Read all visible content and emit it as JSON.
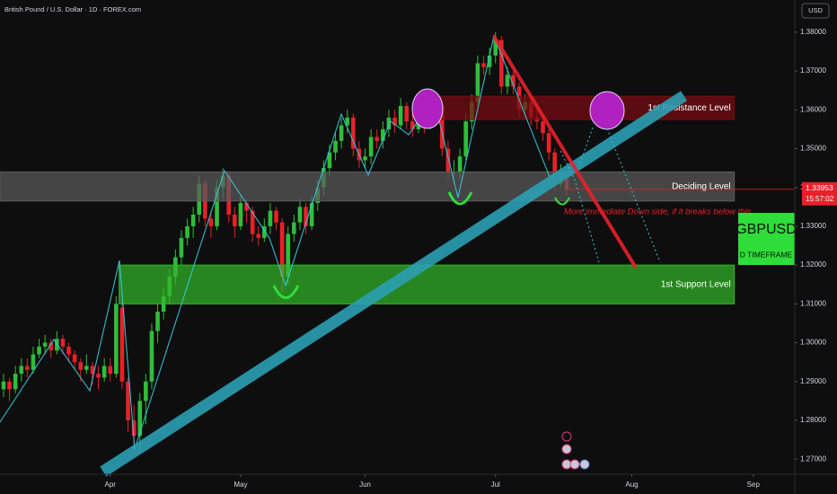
{
  "chart_data": {
    "type": "candlestick",
    "title": "British Pound / U.S. Dollar · 1D · FOREX.com",
    "currency": "USD",
    "up_color": "#2fbd3a",
    "down_color": "#e8202a",
    "grid": false,
    "xlim": [
      -0.6,
      133.5
    ],
    "ylim": [
      1.2668,
      1.3883
    ],
    "xticks": [
      {
        "value": 18,
        "label": "Apr"
      },
      {
        "value": 40,
        "label": "May"
      },
      {
        "value": 61,
        "label": "Jun"
      },
      {
        "value": 83,
        "label": "Jul"
      },
      {
        "value": 106,
        "label": "Aug"
      },
      {
        "value": 126.5,
        "label": "Sep"
      }
    ],
    "yticks": [
      {
        "value": 1.27,
        "label": "1.27000"
      },
      {
        "value": 1.28,
        "label": "1.28000"
      },
      {
        "value": 1.29,
        "label": "1.29000"
      },
      {
        "value": 1.3,
        "label": "1.30000"
      },
      {
        "value": 1.31,
        "label": "1.31000"
      },
      {
        "value": 1.32,
        "label": "1.32000"
      },
      {
        "value": 1.33,
        "label": "1.33000"
      },
      {
        "value": 1.34,
        "label": "1.34000"
      },
      {
        "value": 1.35,
        "label": "1.35000"
      },
      {
        "value": 1.36,
        "label": "1.36000"
      },
      {
        "value": 1.37,
        "label": "1.37000"
      },
      {
        "value": 1.38,
        "label": "1.38000"
      }
    ],
    "candles": [
      [
        1.288,
        1.292,
        1.286,
        1.29
      ],
      [
        1.29,
        1.291,
        1.285,
        1.288
      ],
      [
        1.288,
        1.294,
        1.287,
        1.292
      ],
      [
        1.292,
        1.296,
        1.29,
        1.294
      ],
      [
        1.294,
        1.296,
        1.291,
        1.293
      ],
      [
        1.293,
        1.299,
        1.292,
        1.297
      ],
      [
        1.297,
        1.301,
        1.296,
        1.299
      ],
      [
        1.299,
        1.302,
        1.297,
        1.3
      ],
      [
        1.3,
        1.301,
        1.296,
        1.298
      ],
      [
        1.298,
        1.303,
        1.297,
        1.301
      ],
      [
        1.301,
        1.302,
        1.297,
        1.299
      ],
      [
        1.299,
        1.3,
        1.295,
        1.297
      ],
      [
        1.297,
        1.298,
        1.293,
        1.295
      ],
      [
        1.295,
        1.296,
        1.29,
        1.293
      ],
      [
        1.293,
        1.297,
        1.292,
        1.294
      ],
      [
        1.294,
        1.295,
        1.289,
        1.292
      ],
      [
        1.292,
        1.294,
        1.288,
        1.291
      ],
      [
        1.291,
        1.296,
        1.29,
        1.294
      ],
      [
        1.294,
        1.296,
        1.29,
        1.292
      ],
      [
        1.292,
        1.312,
        1.291,
        1.31
      ],
      [
        1.309,
        1.311,
        1.288,
        1.29
      ],
      [
        1.29,
        1.291,
        1.277,
        1.28
      ],
      [
        1.28,
        1.284,
        1.271,
        1.276
      ],
      [
        1.276,
        1.287,
        1.272,
        1.285
      ],
      [
        1.285,
        1.292,
        1.279,
        1.29
      ],
      [
        1.29,
        1.305,
        1.288,
        1.303
      ],
      [
        1.303,
        1.31,
        1.3,
        1.308
      ],
      [
        1.308,
        1.314,
        1.306,
        1.312
      ],
      [
        1.312,
        1.319,
        1.31,
        1.317
      ],
      [
        1.317,
        1.324,
        1.315,
        1.322
      ],
      [
        1.322,
        1.329,
        1.32,
        1.327
      ],
      [
        1.327,
        1.332,
        1.325,
        1.33
      ],
      [
        1.33,
        1.335,
        1.327,
        1.333
      ],
      [
        1.333,
        1.343,
        1.331,
        1.341
      ],
      [
        1.341,
        1.342,
        1.33,
        1.332
      ],
      [
        1.332,
        1.334,
        1.327,
        1.33
      ],
      [
        1.33,
        1.342,
        1.329,
        1.34
      ],
      [
        1.34,
        1.345,
        1.337,
        1.343
      ],
      [
        1.343,
        1.344,
        1.331,
        1.333
      ],
      [
        1.333,
        1.335,
        1.327,
        1.33
      ],
      [
        1.33,
        1.338,
        1.329,
        1.336
      ],
      [
        1.336,
        1.337,
        1.331,
        1.334
      ],
      [
        1.334,
        1.335,
        1.326,
        1.328
      ],
      [
        1.328,
        1.33,
        1.325,
        1.327
      ],
      [
        1.327,
        1.332,
        1.326,
        1.33
      ],
      [
        1.33,
        1.336,
        1.328,
        1.334
      ],
      [
        1.334,
        1.335,
        1.329,
        1.331
      ],
      [
        1.331,
        1.332,
        1.313,
        1.317
      ],
      [
        1.317,
        1.33,
        1.315,
        1.328
      ],
      [
        1.328,
        1.333,
        1.326,
        1.331
      ],
      [
        1.331,
        1.337,
        1.329,
        1.335
      ],
      [
        1.335,
        1.336,
        1.328,
        1.33
      ],
      [
        1.33,
        1.338,
        1.329,
        1.336
      ],
      [
        1.336,
        1.342,
        1.334,
        1.34
      ],
      [
        1.34,
        1.347,
        1.338,
        1.345
      ],
      [
        1.345,
        1.351,
        1.343,
        1.349
      ],
      [
        1.349,
        1.354,
        1.347,
        1.352
      ],
      [
        1.352,
        1.358,
        1.35,
        1.356
      ],
      [
        1.356,
        1.36,
        1.354,
        1.358
      ],
      [
        1.358,
        1.359,
        1.348,
        1.35
      ],
      [
        1.35,
        1.352,
        1.345,
        1.347
      ],
      [
        1.347,
        1.35,
        1.345,
        1.348
      ],
      [
        1.348,
        1.355,
        1.346,
        1.353
      ],
      [
        1.353,
        1.355,
        1.35,
        1.352
      ],
      [
        1.352,
        1.357,
        1.35,
        1.355
      ],
      [
        1.355,
        1.36,
        1.353,
        1.358
      ],
      [
        1.358,
        1.36,
        1.354,
        1.356
      ],
      [
        1.356,
        1.363,
        1.355,
        1.361
      ],
      [
        1.361,
        1.362,
        1.355,
        1.357
      ],
      [
        1.357,
        1.359,
        1.353,
        1.355
      ],
      [
        1.355,
        1.362,
        1.354,
        1.36
      ],
      [
        1.36,
        1.361,
        1.354,
        1.356
      ],
      [
        1.356,
        1.36,
        1.355,
        1.358
      ],
      [
        1.358,
        1.363,
        1.356,
        1.361
      ],
      [
        1.361,
        1.362,
        1.348,
        1.35
      ],
      [
        1.35,
        1.352,
        1.342,
        1.344
      ],
      [
        1.344,
        1.347,
        1.341,
        1.344
      ],
      [
        1.344,
        1.35,
        1.342,
        1.348
      ],
      [
        1.348,
        1.359,
        1.347,
        1.357
      ],
      [
        1.357,
        1.364,
        1.355,
        1.362
      ],
      [
        1.362,
        1.374,
        1.361,
        1.372
      ],
      [
        1.372,
        1.374,
        1.369,
        1.371
      ],
      [
        1.371,
        1.376,
        1.369,
        1.374
      ],
      [
        1.374,
        1.38,
        1.372,
        1.378
      ],
      [
        1.378,
        1.379,
        1.364,
        1.366
      ],
      [
        1.366,
        1.371,
        1.364,
        1.369
      ],
      [
        1.369,
        1.37,
        1.364,
        1.366
      ],
      [
        1.366,
        1.367,
        1.358,
        1.36
      ],
      [
        1.36,
        1.364,
        1.358,
        1.362
      ],
      [
        1.362,
        1.363,
        1.356,
        1.358
      ],
      [
        1.358,
        1.36,
        1.355,
        1.357
      ],
      [
        1.357,
        1.358,
        1.352,
        1.354
      ],
      [
        1.354,
        1.355,
        1.347,
        1.349
      ],
      [
        1.349,
        1.35,
        1.339,
        1.341
      ],
      [
        1.341,
        1.346,
        1.34,
        1.344
      ],
      [
        1.344,
        1.345,
        1.338,
        1.33953
      ]
    ],
    "zones": [
      {
        "name": "1st Resistance Level",
        "range": [
          1.3575,
          1.3635
        ],
        "from": 70.6,
        "to": 123.3,
        "color": "#7a0c12"
      },
      {
        "name": "Deciding Level",
        "range": [
          1.3365,
          1.344
        ],
        "from": -0.6,
        "to": 123.3,
        "color": "#5c5c5c"
      },
      {
        "name": "1st Support Level",
        "range": [
          1.31,
          1.32
        ],
        "from": 19.5,
        "to": 123.3,
        "color": "#33b52a"
      }
    ],
    "trendlines": [
      {
        "points": [
          [
            16.8,
            1.2668
          ],
          [
            114.8,
            1.3636
          ]
        ],
        "color": "#2a9fb2",
        "width": 13
      },
      {
        "points": [
          [
            82.7,
            1.3791
          ],
          [
            106.7,
            1.3193
          ]
        ],
        "color": "#e8202a",
        "width": 4
      }
    ],
    "annotation": "More immediate Down side, if it breaks below this",
    "symbol": "GBPUSD",
    "timeframe": "D TIMEFRAME",
    "last_price": 1.33953,
    "countdown": "15:57:02"
  }
}
